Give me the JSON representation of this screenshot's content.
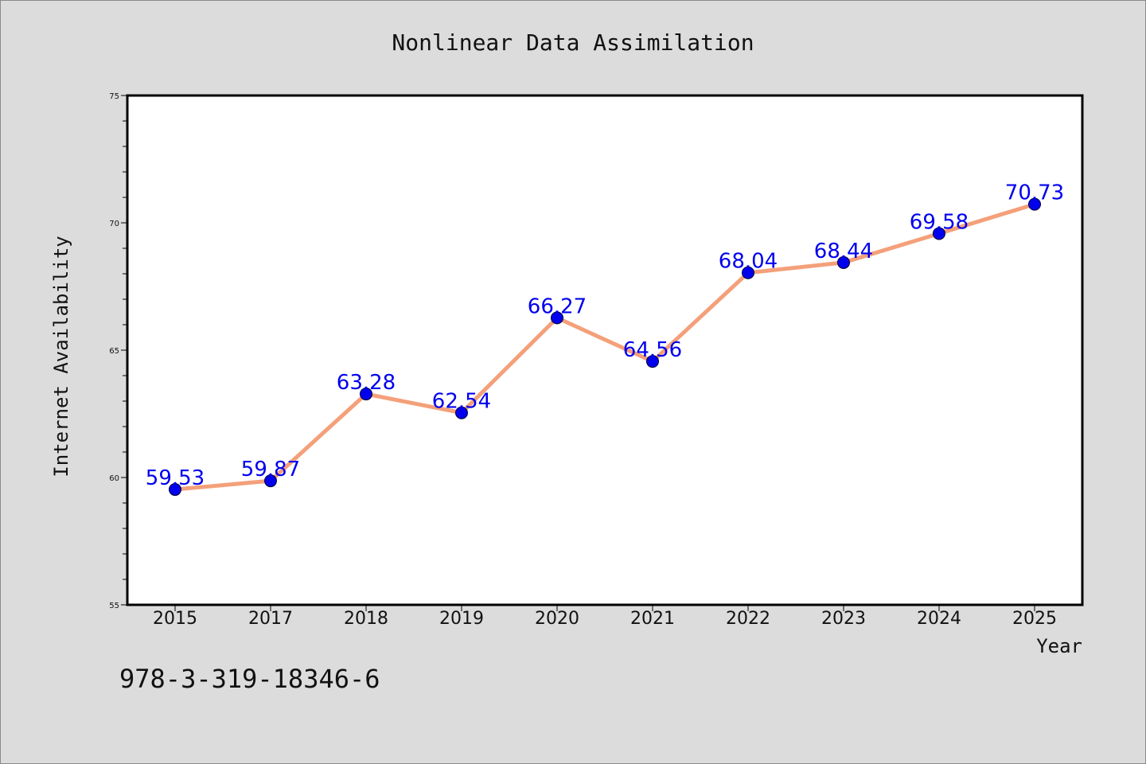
{
  "chart_data": {
    "type": "line",
    "title": "Nonlinear Data Assimilation",
    "xlabel": "Year",
    "ylabel": "Internet Availability",
    "categories": [
      "2015",
      "2017",
      "2018",
      "2019",
      "2020",
      "2021",
      "2022",
      "2023",
      "2024",
      "2025"
    ],
    "series": [
      {
        "values": [
          59.53,
          59.87,
          63.28,
          62.54,
          66.27,
          64.56,
          68.04,
          68.44,
          69.58,
          70.73
        ],
        "line_color": "#f4a07a",
        "marker_color": "#0000ee",
        "label_color": "#0000ee"
      }
    ],
    "ylim": [
      55,
      75
    ],
    "yticks": [
      55,
      60,
      65,
      70,
      75
    ],
    "grid": false,
    "legend": "none",
    "data_labels": [
      "59.53",
      "59.87",
      "63.28",
      "62.54",
      "66.27",
      "64.56",
      "68.04",
      "68.44",
      "69.58",
      "70.73"
    ]
  },
  "footnote": "978-3-319-18346-6"
}
